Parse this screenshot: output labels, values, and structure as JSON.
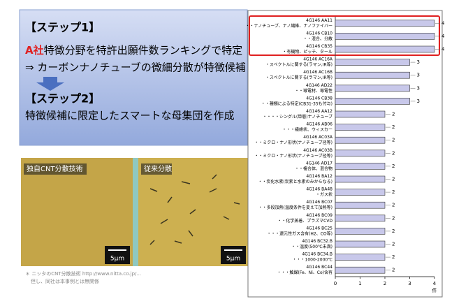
{
  "slide": {
    "step1_title": "【ステップ1】",
    "line1": {
      "emph": "A社",
      "text": "特徴分野を特許出願件数ランキングで特定"
    },
    "line2": "⇒ カーボンナノチューブの微細分散が特徴候補",
    "step2_title": "【ステップ2】",
    "line3": "特徴候補に限定したスマートな母集団を作成",
    "photo_left": {
      "label": "独自CNT分散技術",
      "scale": "5μm"
    },
    "photo_right": {
      "label": "従来分散",
      "scale": "5μm"
    },
    "footnote": [
      "＊ ニッタのCNT分散技術 http://www.nitta.co.jp/...",
      "但し、同社は本事例とは無関係"
    ]
  },
  "chart_data": {
    "type": "hbar",
    "categories": [
      [
        "4G146 AA11",
        "・・ナノチューブ、ナノ繊維、ナノファイバー"
      ],
      [
        "4G146 CB10",
        "・・混合、分散"
      ],
      [
        "4G146 CB35",
        "・有機物、ピッチ、タール"
      ],
      [
        "4G146 AC16A",
        "・スペクトルに関する(ラマン,IR等)"
      ],
      [
        "4G146 AC16B",
        "・スペクトルに関する(ラマン,IR等)"
      ],
      [
        "4G146 AD22",
        "・・導電材、導電性"
      ],
      [
        "4G146 CB38",
        "・・種類による特定(CB31-35も付与)"
      ],
      [
        "4G146 AA12",
        "・・・・シングル(単層)ナノチューブ"
      ],
      [
        "4G146 AB06",
        "・・・繊維状、ウィスカー"
      ],
      [
        "4G146 AC03A",
        "・・ミクロ・ナノ形状(ナノチューブ径等)"
      ],
      [
        "4G146 AC03B",
        "・・ミクロ・ナノ形状(ナノチューブ径等)"
      ],
      [
        "4G146 AD17",
        "・・複合体、混合物"
      ],
      [
        "4G146 BA12",
        "・・炭化水素(炭素と水素のみからなる)"
      ],
      [
        "4G146 BA48",
        "・ガス状"
      ],
      [
        "4G146 BC07",
        "・・多段加熱(温度条件を変えて加熱等)"
      ],
      [
        "4G146 BC09",
        "・・化学蒸着、プラズマCVD"
      ],
      [
        "4G146 BC25",
        "・・・還元性ガス含有(H2、CO等)"
      ],
      [
        "4G146 BC32.B",
        "・・温度(500℃未満)"
      ],
      [
        "4G146 BC34.B",
        "・・・1000-2000℃"
      ],
      [
        "4G146 BC44",
        "・・・触媒(Fe、Ni、Co)含有"
      ]
    ],
    "values": [
      4,
      4,
      4,
      3,
      3,
      3,
      3,
      2,
      2,
      2,
      2,
      2,
      2,
      2,
      2,
      2,
      2,
      2,
      2,
      2
    ],
    "color": "#c8c8ea",
    "xlim": [
      0,
      4
    ],
    "xticks": [
      0,
      1,
      2,
      3,
      4
    ],
    "xlabel": "件",
    "grid": false
  }
}
